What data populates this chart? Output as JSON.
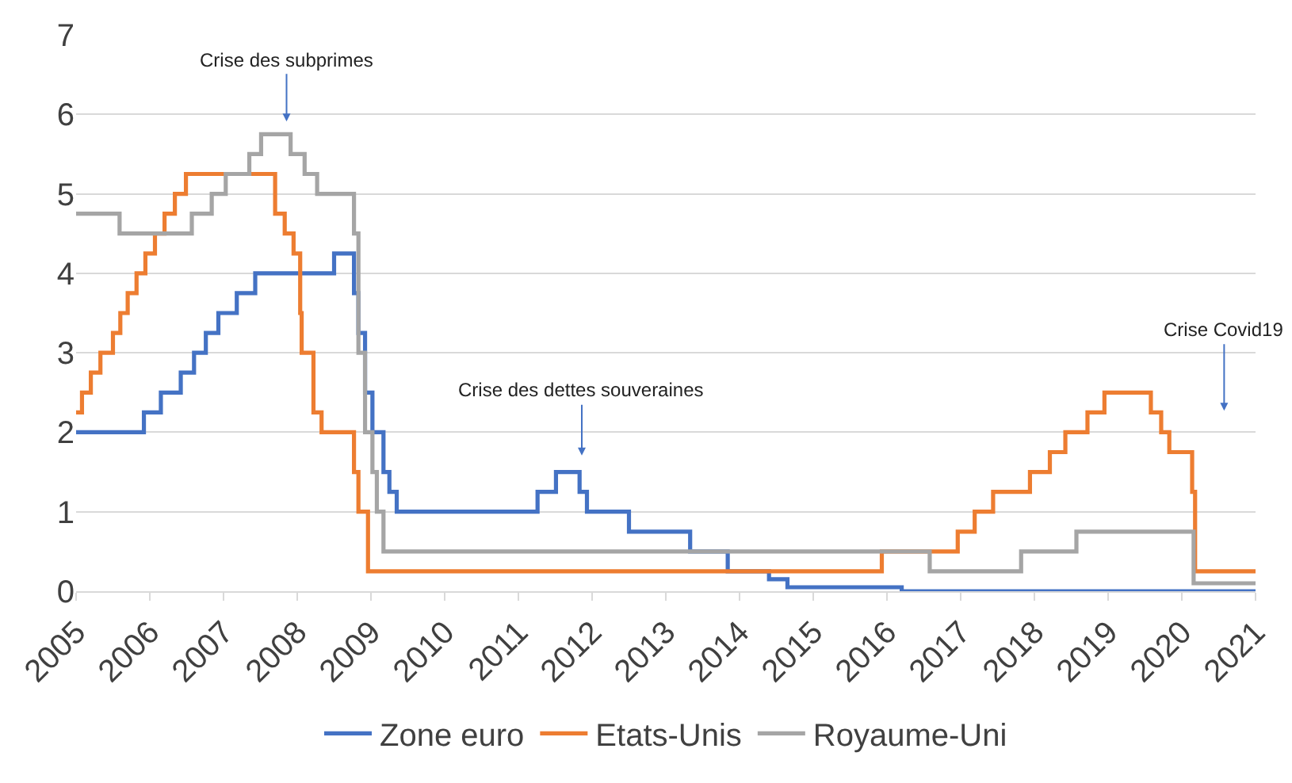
{
  "chart_data": {
    "type": "step",
    "xlim": [
      2005,
      2021
    ],
    "xticks": [
      2005,
      2006,
      2007,
      2008,
      2009,
      2010,
      2011,
      2012,
      2013,
      2014,
      2015,
      2016,
      2017,
      2018,
      2019,
      2020,
      2021
    ],
    "ylim": [
      0,
      7
    ],
    "yticks": [
      0,
      1,
      2,
      3,
      4,
      5,
      6,
      7
    ],
    "grid": "y",
    "legend": "bottom",
    "marker": "none",
    "line_style": "solid",
    "series": [
      {
        "name": "Zone euro",
        "color": "#4472c4",
        "x": [
          2005,
          2005.92,
          2006.15,
          2006.42,
          2006.6,
          2006.76,
          2006.93,
          2007.18,
          2007.43,
          2008.5,
          2008.77,
          2008.83,
          2008.92,
          2009.02,
          2009.17,
          2009.25,
          2009.35,
          2011.26,
          2011.51,
          2011.83,
          2011.93,
          2012.5,
          2013.33,
          2013.84,
          2014.4,
          2014.65,
          2016.2,
          2021
        ],
        "values": [
          2.0,
          2.25,
          2.5,
          2.75,
          3.0,
          3.25,
          3.5,
          3.75,
          4.0,
          4.25,
          3.75,
          3.25,
          2.5,
          2.0,
          1.5,
          1.25,
          1.0,
          1.25,
          1.5,
          1.25,
          1.0,
          0.75,
          0.5,
          0.25,
          0.15,
          0.05,
          0.0,
          0.0
        ]
      },
      {
        "name": "Etats-Unis",
        "color": "#ed7d31",
        "x": [
          2005,
          2005.08,
          2005.2,
          2005.33,
          2005.5,
          2005.6,
          2005.7,
          2005.82,
          2005.94,
          2006.07,
          2006.2,
          2006.34,
          2006.49,
          2007.7,
          2007.83,
          2007.95,
          2008.04,
          2008.06,
          2008.22,
          2008.33,
          2008.77,
          2008.83,
          2008.96,
          2015.93,
          2016.96,
          2017.19,
          2017.44,
          2017.94,
          2018.21,
          2018.42,
          2018.72,
          2018.95,
          2019.58,
          2019.72,
          2019.83,
          2020.14,
          2020.18,
          2021
        ],
        "values": [
          2.25,
          2.5,
          2.75,
          3.0,
          3.25,
          3.5,
          3.75,
          4.0,
          4.25,
          4.5,
          4.75,
          5.0,
          5.25,
          4.75,
          4.5,
          4.25,
          3.5,
          3.0,
          2.25,
          2.0,
          1.5,
          1.0,
          0.25,
          0.5,
          0.75,
          1.0,
          1.25,
          1.5,
          1.75,
          2.0,
          2.25,
          2.5,
          2.25,
          2.0,
          1.75,
          1.25,
          0.25,
          0.25
        ]
      },
      {
        "name": "Royaume-Uni",
        "color": "#a5a5a5",
        "x": [
          2005,
          2005.59,
          2006.57,
          2006.84,
          2007.03,
          2007.35,
          2007.51,
          2007.91,
          2008.1,
          2008.27,
          2008.77,
          2008.83,
          2008.92,
          2009.02,
          2009.08,
          2009.17,
          2016.58,
          2017.82,
          2018.57,
          2020.16,
          2021
        ],
        "values": [
          4.75,
          4.5,
          4.75,
          5.0,
          5.25,
          5.5,
          5.75,
          5.5,
          5.25,
          5.0,
          4.5,
          3.0,
          2.0,
          1.5,
          1.0,
          0.5,
          0.25,
          0.5,
          0.75,
          0.1,
          0.1
        ]
      }
    ],
    "annotations": [
      "Crise des subprimes",
      "Crise des dettes souveraines",
      "Crise Covid19"
    ]
  }
}
